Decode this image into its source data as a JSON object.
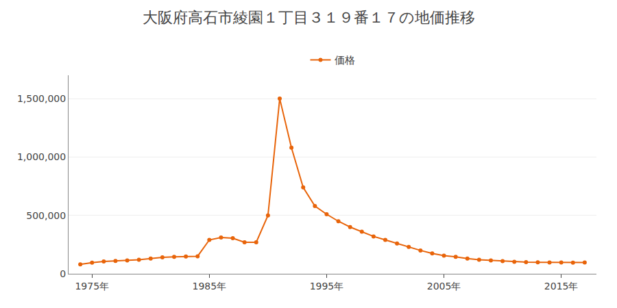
{
  "chart_data": {
    "type": "line",
    "title": "大阪府高石市綾園１丁目３１９番１７の地価推移",
    "x": [
      1974,
      1975,
      1976,
      1977,
      1978,
      1979,
      1980,
      1981,
      1982,
      1983,
      1984,
      1985,
      1986,
      1987,
      1988,
      1989,
      1990,
      1991,
      1992,
      1993,
      1994,
      1995,
      1996,
      1997,
      1998,
      1999,
      2000,
      2001,
      2002,
      2003,
      2004,
      2005,
      2006,
      2007,
      2008,
      2009,
      2010,
      2011,
      2012,
      2013,
      2014,
      2015,
      2016,
      2017
    ],
    "series": [
      {
        "name": "価格",
        "color": "#e8640a",
        "marker": "circle",
        "line_style": "solid",
        "values": [
          80000,
          95000,
          105000,
          110000,
          115000,
          120000,
          130000,
          140000,
          145000,
          148000,
          150000,
          290000,
          310000,
          305000,
          270000,
          270000,
          500000,
          1500000,
          1080000,
          740000,
          580000,
          510000,
          450000,
          400000,
          360000,
          320000,
          290000,
          260000,
          230000,
          200000,
          175000,
          155000,
          145000,
          130000,
          120000,
          115000,
          108000,
          103000,
          100000,
          98000,
          97000,
          96000,
          95000,
          97000
        ]
      }
    ],
    "xlim": [
      1973,
      2018
    ],
    "xticks": [
      {
        "value": 1975,
        "label": "1975年"
      },
      {
        "value": 1985,
        "label": "1985年"
      },
      {
        "value": 1995,
        "label": "1995年"
      },
      {
        "value": 2005,
        "label": "2005年"
      },
      {
        "value": 2015,
        "label": "2015年"
      }
    ],
    "ylim": [
      0,
      1700000
    ],
    "yticks": [
      0,
      {
        "value": 500000,
        "label": "500,000"
      },
      {
        "value": 1000000,
        "label": "1,000,000"
      },
      {
        "value": 1500000,
        "label": "1,500,000"
      }
    ],
    "grid": "y",
    "legend": "top"
  }
}
